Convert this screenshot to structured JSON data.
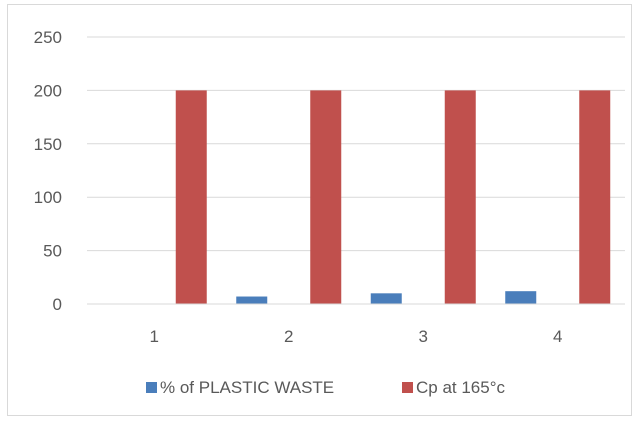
{
  "chart_data": {
    "type": "bar",
    "title": "",
    "xlabel": "",
    "ylabel": "",
    "categories": [
      "1",
      "2",
      "3",
      "4"
    ],
    "series": [
      {
        "name": "% of PLASTIC WASTE",
        "values": [
          0,
          7,
          10,
          12
        ],
        "color": "#4a7ebb"
      },
      {
        "name": "Cp at 165°c",
        "values": [
          200,
          200,
          200,
          200
        ],
        "color": "#c0504d"
      }
    ],
    "ylim": [
      0,
      250
    ],
    "yticks": [
      0,
      50,
      100,
      150,
      200,
      250
    ],
    "grid": true,
    "legend": "bottom"
  }
}
